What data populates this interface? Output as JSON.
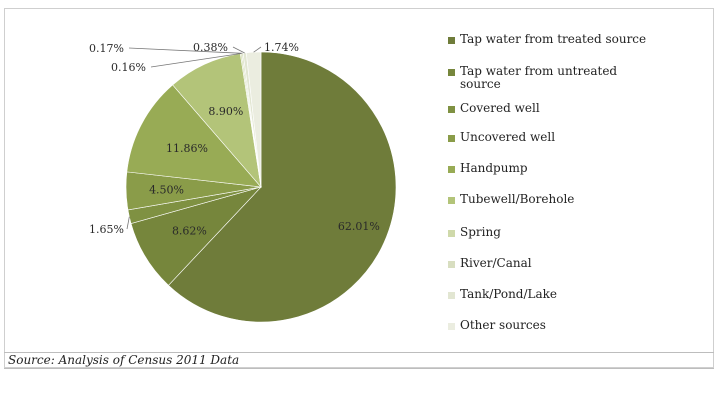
{
  "chart_data": {
    "type": "pie",
    "categories": [
      "Tap water from treated source",
      "Tap water from untreated source",
      "Covered well",
      "Uncovered well",
      "Handpump",
      "Tubewell/Borehole",
      "Spring",
      "River/Canal",
      "Tank/Pond/Lake",
      "Other sources"
    ],
    "values": [
      62.01,
      8.62,
      1.65,
      4.5,
      11.86,
      8.9,
      0.16,
      0.17,
      0.38,
      1.74
    ],
    "data_labels": [
      "62.01%",
      "8.62%",
      "1.65%",
      "4.50%",
      "11.86%",
      "8.90%",
      "0.16%",
      "0.17%",
      "0.38%",
      "1.74%"
    ],
    "colors": [
      "#6f7c3a",
      "#76863c",
      "#7f9142",
      "#8a9c49",
      "#98ab55",
      "#b3c479",
      "#cfd9aa",
      "#d8dec0",
      "#e2e6d2",
      "#ebede0"
    ],
    "legend_position": "right"
  },
  "source": "Source: Analysis of Census 2011 Data"
}
